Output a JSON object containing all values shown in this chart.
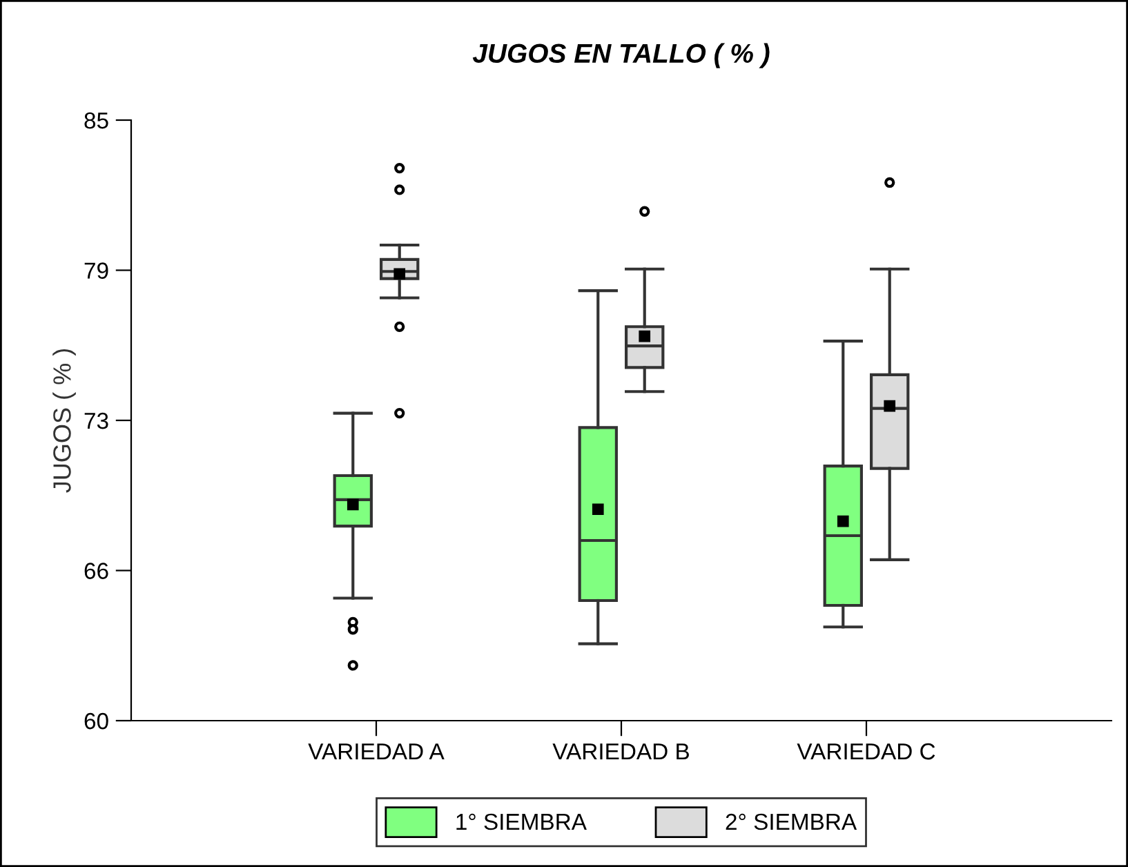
{
  "chart_data": {
    "type": "box",
    "title": "JUGOS EN TALLO ( % )",
    "ylabel": "JUGOS ( % )",
    "categories": [
      "VARIEDAD A",
      "VARIEDAD B",
      "VARIEDAD C"
    ],
    "ylim": [
      60,
      85
    ],
    "yticks": [
      60,
      {
        "value": 66.25,
        "label": "66"
      },
      {
        "value": 72.5,
        "label": "73"
      },
      {
        "value": 78.75,
        "label": "79"
      },
      85
    ],
    "grid": false,
    "legend": "bottom",
    "series": [
      {
        "name": "1° SIEMBRA",
        "color": "#80ff80",
        "boxes": [
          {
            "low": 65.1,
            "q1": 68.1,
            "median": 69.2,
            "q3": 70.2,
            "high": 72.8,
            "mean": 69.0,
            "outliers": [
              64.1,
              63.8,
              62.3
            ]
          },
          {
            "low": 63.2,
            "q1": 65.0,
            "median": 67.5,
            "q3": 72.2,
            "high": 77.9,
            "mean": 68.8
          },
          {
            "low": 63.9,
            "q1": 64.8,
            "median": 67.7,
            "q3": 70.6,
            "high": 75.8,
            "mean": 68.3
          }
        ]
      },
      {
        "name": "2° SIEMBRA",
        "color": "#dcdcdc",
        "boxes": [
          {
            "low": 77.6,
            "q1": 78.4,
            "median": 78.7,
            "q3": 79.2,
            "high": 79.8,
            "mean": 78.6,
            "outliers": [
              83.0,
              82.1,
              76.4,
              72.8
            ]
          },
          {
            "low": 73.7,
            "q1": 74.7,
            "median": 75.6,
            "q3": 76.4,
            "high": 78.8,
            "mean": 76.0,
            "outliers": [
              81.2
            ]
          },
          {
            "low": 66.7,
            "q1": 70.5,
            "median": 73.0,
            "q3": 74.4,
            "high": 78.8,
            "mean": 73.1,
            "outliers": [
              82.4
            ]
          }
        ]
      }
    ]
  }
}
